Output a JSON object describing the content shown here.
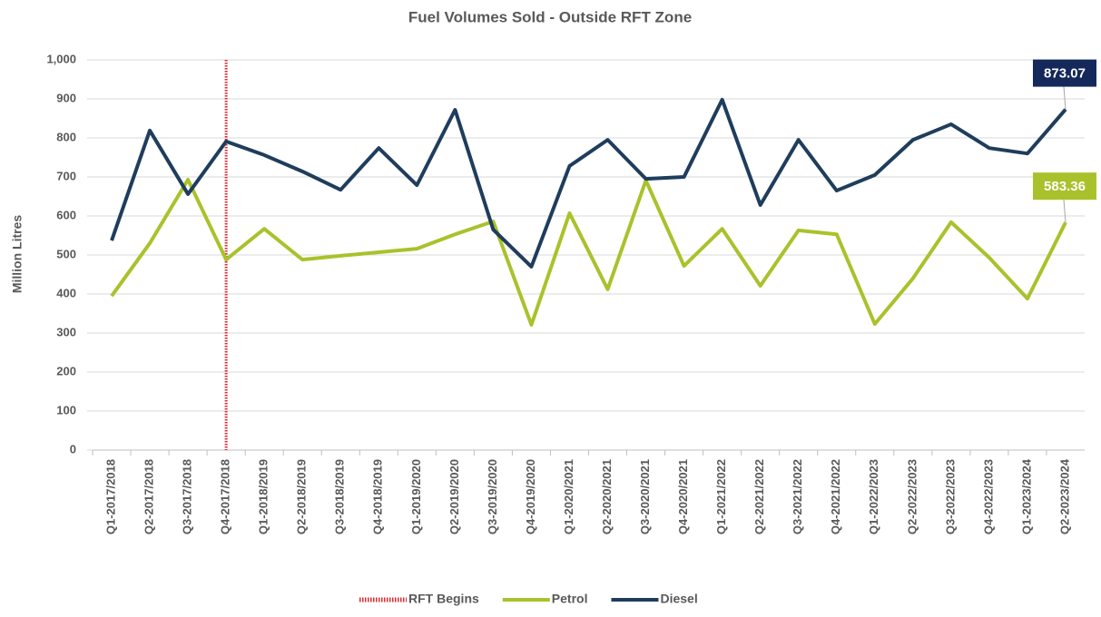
{
  "chart_data": {
    "type": "line",
    "title": "Fuel Volumes Sold - Outside RFT Zone",
    "y_label": "Million Litres",
    "categories": [
      "Q1-2017/2018",
      "Q2-2017/2018",
      "Q3-2017/2018",
      "Q4-2017/2018",
      "Q1-2018/2019",
      "Q2-2018/2019",
      "Q3-2018/2019",
      "Q4-2018/2019",
      "Q1-2019/2020",
      "Q2-2019/2020",
      "Q3-2019/2020",
      "Q4-2019/2020",
      "Q1-2020/2021",
      "Q2-2020/2021",
      "Q3-2020/2021",
      "Q4-2020/2021",
      "Q1-2021/2022",
      "Q2-2021/2022",
      "Q3-2021/2022",
      "Q4-2021/2022",
      "Q1-2022/2023",
      "Q2-2022/2023",
      "Q3-2022/2023",
      "Q4-2022/2023",
      "Q1-2023/2024",
      "Q2-2023/2024"
    ],
    "marker_line": {
      "name": "RFT Begins",
      "category": "Q4-2017/2018",
      "color": "#e0282e"
    },
    "series": [
      {
        "name": "Petrol",
        "color": "#a9c22c",
        "values": [
          395,
          530,
          693,
          488,
          567,
          488,
          498,
          507,
          516,
          553,
          586,
          321,
          607,
          412,
          691,
          472,
          567,
          421,
          563,
          553,
          323,
          440,
          584,
          493,
          388,
          583.36
        ],
        "value_labels": [
          null,
          null,
          null,
          null,
          null,
          null,
          null,
          null,
          null,
          null,
          null,
          null,
          null,
          null,
          null,
          null,
          null,
          null,
          null,
          null,
          null,
          null,
          null,
          null,
          null,
          "583.36"
        ]
      },
      {
        "name": "Diesel",
        "color": "#1f3d5c",
        "label_color": "#14295a",
        "values": [
          537,
          819,
          656,
          791,
          756,
          714,
          667,
          774,
          679,
          872,
          565,
          470,
          728,
          795,
          695,
          700,
          898,
          628,
          795,
          665,
          705,
          795,
          835,
          774,
          760,
          873.07
        ],
        "value_labels": [
          null,
          null,
          null,
          null,
          null,
          null,
          null,
          null,
          null,
          null,
          null,
          null,
          null,
          null,
          null,
          null,
          null,
          null,
          null,
          null,
          null,
          null,
          null,
          null,
          null,
          "873.07"
        ]
      }
    ],
    "ylim": [
      0,
      1000
    ],
    "yticks": [
      0,
      100,
      200,
      300,
      400,
      500,
      600,
      700,
      800,
      900,
      {
        "value": 1000,
        "label": "1,000"
      }
    ],
    "grid": true
  }
}
